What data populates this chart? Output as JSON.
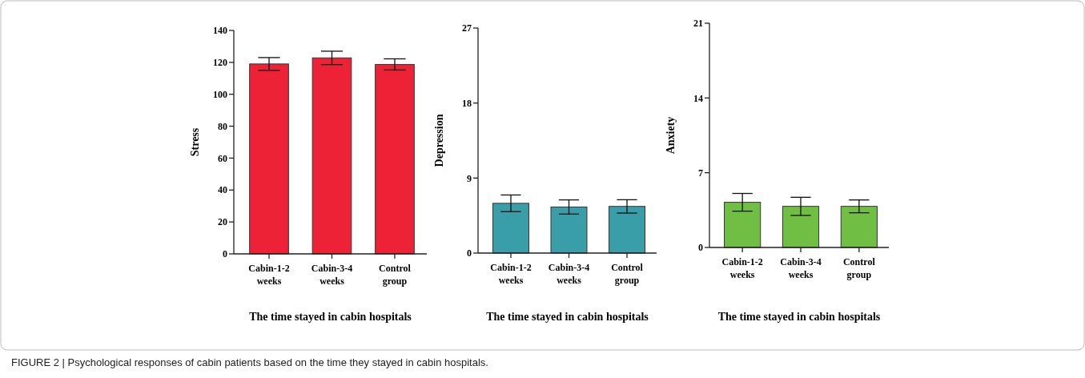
{
  "chart_data": [
    {
      "type": "bar",
      "categories": [
        "Cabin-1-2 weeks",
        "Cabin-3-4 weeks",
        "Control group"
      ],
      "values": [
        119,
        122.8,
        118.7
      ],
      "errors": [
        4,
        4.2,
        3.5
      ],
      "color": "#ed2236",
      "ylabel": "Stress",
      "xlabel": "The time stayed in cabin hospitals",
      "ylim": [
        0,
        140
      ],
      "yticks": [
        0,
        20,
        40,
        60,
        80,
        100,
        120,
        140
      ],
      "grid": false,
      "annotations": [
        "FIGURE 2 | Psychological responses of cabin patients based on the time they stayed in cabin hospitals."
      ]
    },
    {
      "type": "bar",
      "categories": [
        "Cabin-1-2 weeks",
        "Cabin-3-4 weeks",
        "Control group"
      ],
      "values": [
        5.97,
        5.53,
        5.6
      ],
      "errors": [
        1,
        0.85,
        0.8
      ],
      "color": "#3a9ea9",
      "ylabel": "Depression",
      "xlabel": "The time stayed in cabin hospitals",
      "ylim": [
        0,
        27
      ],
      "yticks": [
        0,
        9,
        18,
        27
      ],
      "grid": false
    },
    {
      "type": "bar",
      "categories": [
        "Cabin-1-2 weeks",
        "Cabin-3-4 weeks",
        "Control group"
      ],
      "values": [
        4.23,
        3.85,
        3.85
      ],
      "errors": [
        0.83,
        0.85,
        0.6
      ],
      "color": "#70bf44",
      "ylabel": "Anxiety",
      "xlabel": "The time stayed in cabin hospitals",
      "ylim": [
        0,
        21
      ],
      "yticks": [
        0,
        7,
        14,
        21
      ],
      "grid": false
    }
  ]
}
